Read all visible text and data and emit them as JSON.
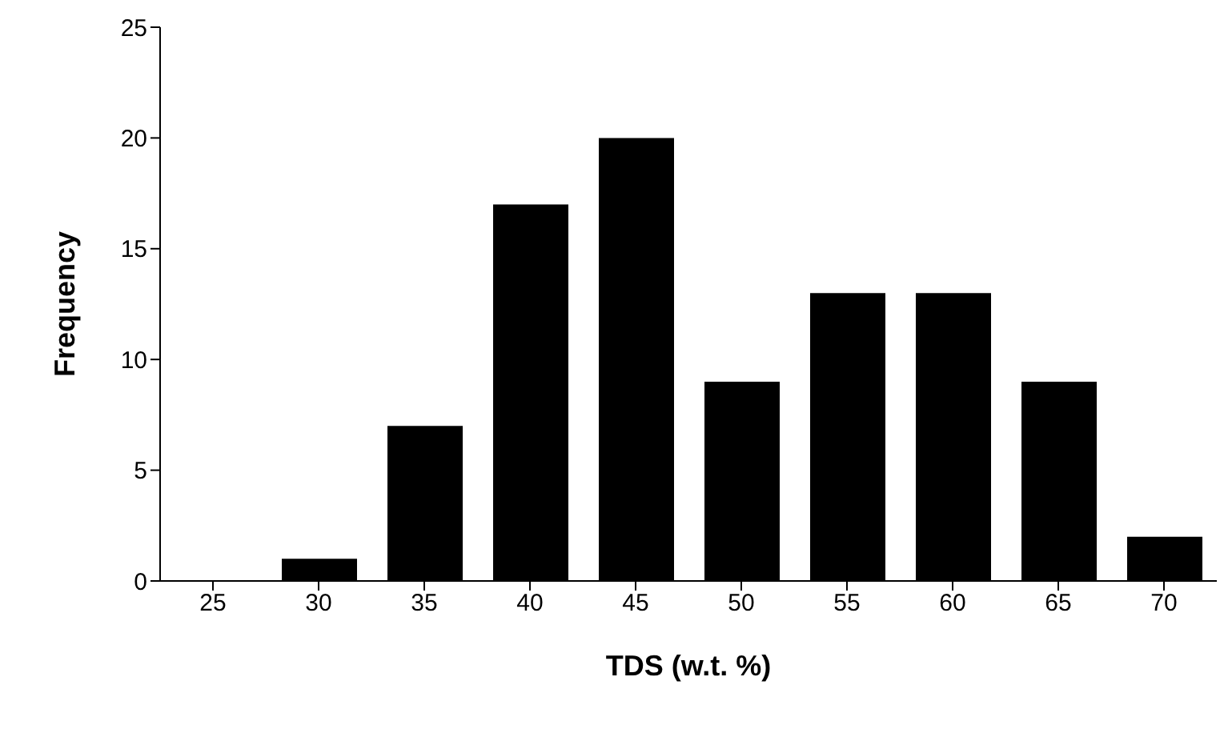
{
  "chart_data": {
    "type": "bar",
    "xlabel": "TDS (w.t. %)",
    "ylabel": "Frequency",
    "categories": [
      "25",
      "30",
      "35",
      "40",
      "45",
      "50",
      "55",
      "60",
      "65",
      "70"
    ],
    "values": [
      0,
      1,
      7,
      17,
      20,
      9,
      13,
      13,
      9,
      2
    ],
    "color": "#000000",
    "ylim": [
      0,
      25
    ],
    "yticks": [
      0,
      5,
      10,
      15,
      20,
      25
    ],
    "grid": false,
    "legend": false
  }
}
